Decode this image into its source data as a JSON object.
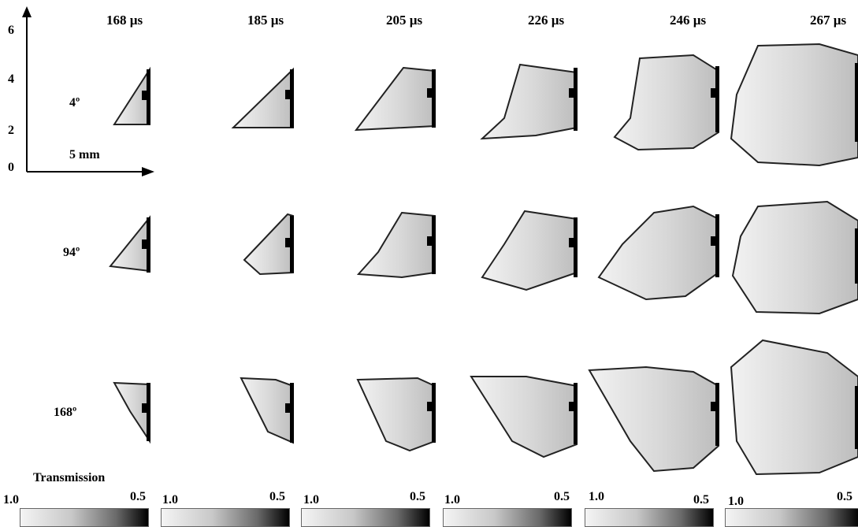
{
  "timestamps": [
    "168 µs",
    "185 µs",
    "205 µs",
    "226 µs",
    "246 µs",
    "267 µs"
  ],
  "angles": [
    "4º",
    "94º",
    "168º"
  ],
  "axis": {
    "ticks": [
      "0",
      "2",
      "4",
      "6"
    ],
    "scale_bar": "5 mm"
  },
  "colorbar": {
    "title": "Transmission",
    "min_label": "1.0",
    "max_label": "0.5"
  },
  "colors": {
    "spray_edge": "#1a1a1a",
    "spray_fill": "#dedede",
    "background": "#ffffff"
  }
}
